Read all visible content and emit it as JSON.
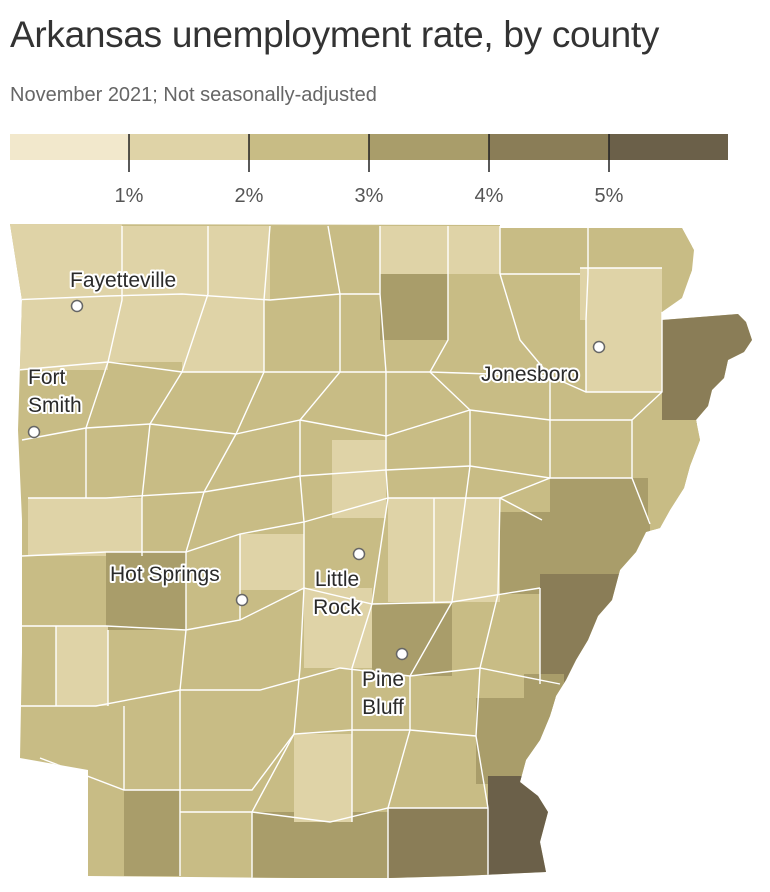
{
  "header": {
    "title": "Arkansas unemployment rate, by county",
    "subtitle": "November 2021; Not seasonally-adjusted"
  },
  "legend": {
    "bins": [
      {
        "color": "#f2e8cc"
      },
      {
        "color": "#dfd3a7"
      },
      {
        "color": "#c8bc85"
      },
      {
        "color": "#a99d6a"
      },
      {
        "color": "#8a7d57"
      },
      {
        "color": "#6b6049"
      }
    ],
    "tick_labels": [
      "1%",
      "2%",
      "3%",
      "4%",
      "5%"
    ],
    "thresholds": [
      1,
      2,
      3,
      4,
      5
    ]
  },
  "cities": [
    {
      "name": "Fayetteville",
      "lines": [
        "Fayetteville"
      ]
    },
    {
      "name": "Fort Smith",
      "lines": [
        "Fort",
        "Smith"
      ]
    },
    {
      "name": "Jonesboro",
      "lines": [
        "Jonesboro"
      ]
    },
    {
      "name": "Hot Springs",
      "lines": [
        "Hot Springs"
      ]
    },
    {
      "name": "Little Rock",
      "lines": [
        "Little",
        "Rock"
      ]
    },
    {
      "name": "Pine Bluff",
      "lines": [
        "Pine",
        "Bluff"
      ]
    }
  ],
  "palette": {
    "background": "#ffffff",
    "county_border": "#ffffff",
    "city_marker_fill": "#ffffff",
    "city_marker_stroke": "#666666"
  }
}
